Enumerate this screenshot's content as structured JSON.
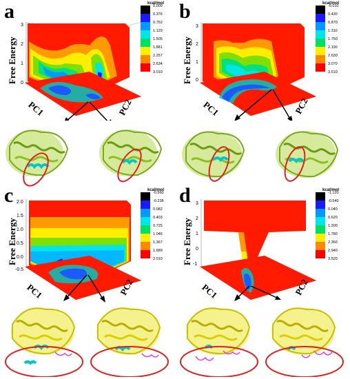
{
  "panels": [
    {
      "id": "a",
      "letter": "a",
      "ylabel": "Free Energy",
      "pc1": "PC1",
      "pc2": "PC2",
      "unit": "kcal/mol",
      "cbar_values": [
        "0.000",
        "0.376",
        "0.752",
        "1.129",
        "1.505",
        "1.881",
        "2.257",
        "2.634",
        "3.010"
      ],
      "z_ticks": [
        "3",
        "2",
        "1",
        "0"
      ]
    },
    {
      "id": "b",
      "letter": "b",
      "ylabel": "Free Energy",
      "pc1": "PC1",
      "pc2": "PC2",
      "unit": "kcal/mol",
      "cbar_values": [
        "-0.010",
        "0.430",
        "0.870",
        "1.310",
        "1.750",
        "2.190",
        "2.630",
        "3.070",
        "3.510"
      ],
      "z_ticks": [
        "3",
        "2",
        "1",
        "0"
      ]
    },
    {
      "id": "c",
      "letter": "c",
      "ylabel": "Free Energy",
      "pc1": "PC1",
      "pc2": "PC2",
      "unit": "kcal/mol",
      "cbar_values": [
        "-0.560",
        "-0.238",
        "0.082",
        "0.403",
        "0.725",
        "1.046",
        "1.367",
        "1.689",
        "2.010"
      ],
      "z_ticks": [
        "2.0",
        "1.5",
        "1.0",
        "0.5",
        "0.0",
        "-0.5"
      ]
    },
    {
      "id": "d",
      "letter": "d",
      "ylabel": "Free Energy",
      "pc1": "PC1",
      "pc2": "PC2",
      "unit": "kcal/mol",
      "cbar_values": [
        "-1.120",
        "-0.540",
        "0.040",
        "0.620",
        "1.200",
        "1.780",
        "2.360",
        "2.940",
        "3.520"
      ],
      "z_ticks": [
        "3",
        "2",
        "1",
        "0",
        "-1"
      ]
    }
  ],
  "colors": {
    "cbar": [
      "#000000",
      "#1a1aff",
      "#0099ff",
      "#00e5e5",
      "#00e060",
      "#66ee00",
      "#ffee00",
      "#ff8800",
      "#ff0000"
    ],
    "protein_green": "#9acd32",
    "protein_yellow": "#e8e000",
    "highlight_cyan": "#00d5d5",
    "ellipse_red": "#e02020"
  }
}
